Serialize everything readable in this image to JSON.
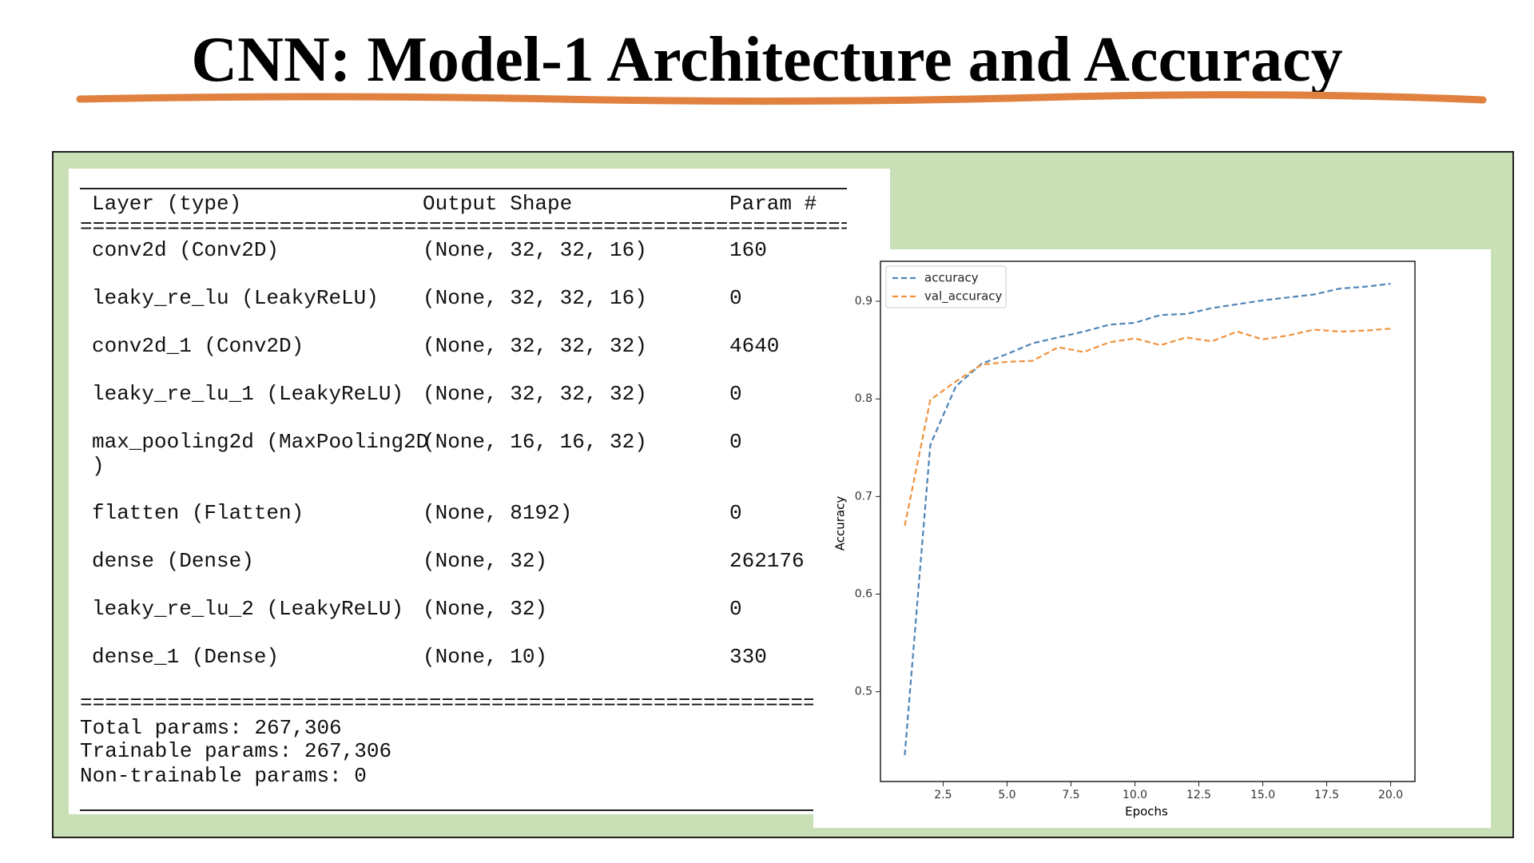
{
  "header": {
    "title": "CNN: Model-1 Architecture and Accuracy"
  },
  "table": {
    "columns": [
      "Layer (type)",
      "Output Shape",
      "Param #"
    ],
    "separator": "==============================================================",
    "rows": [
      [
        "conv2d (Conv2D)",
        "(None, 32, 32, 16)",
        "160"
      ],
      [
        "leaky_re_lu (LeakyReLU)",
        "(None, 32, 32, 16)",
        "0"
      ],
      [
        "conv2d_1 (Conv2D)",
        "(None, 32, 32, 32)",
        "4640"
      ],
      [
        "leaky_re_lu_1 (LeakyReLU)",
        "(None, 32, 32, 32)",
        "0"
      ],
      [
        "max_pooling2d (MaxPooling2D\n)",
        "(None, 16, 16, 32)",
        "0"
      ],
      [
        "flatten (Flatten)",
        "(None, 8192)",
        "0"
      ],
      [
        "dense (Dense)",
        "(None, 32)",
        "262176"
      ],
      [
        "leaky_re_lu_2 (LeakyReLU)",
        "(None, 32)",
        "0"
      ],
      [
        "dense_1 (Dense)",
        "(None, 10)",
        "330"
      ]
    ],
    "footer": [
      "Total params: 267,306",
      "Trainable params: 267,306",
      "Non-trainable params: 0"
    ]
  },
  "chart_data": {
    "type": "line",
    "xlabel": "Epochs",
    "ylabel": "Accuracy",
    "x": [
      1,
      2,
      3,
      4,
      5,
      6,
      7,
      8,
      9,
      10,
      11,
      12,
      13,
      14,
      15,
      16,
      17,
      18,
      19,
      20
    ],
    "series": [
      {
        "name": "accuracy",
        "color": "#4c84b8",
        "values": [
          0.435,
          0.753,
          0.813,
          0.836,
          0.846,
          0.857,
          0.863,
          0.869,
          0.876,
          0.878,
          0.886,
          0.887,
          0.893,
          0.897,
          0.901,
          0.904,
          0.907,
          0.913,
          0.915,
          0.918
        ]
      },
      {
        "name": "val_accuracy",
        "color": "#f0913a",
        "values": [
          0.67,
          0.799,
          0.818,
          0.835,
          0.838,
          0.839,
          0.853,
          0.848,
          0.858,
          0.862,
          0.855,
          0.863,
          0.859,
          0.869,
          0.861,
          0.865,
          0.871,
          0.869,
          0.87,
          0.872
        ]
      }
    ],
    "xlim": [
      0.05,
      20.95
    ],
    "ylim": [
      0.408,
      0.941
    ],
    "xticks": [
      2.5,
      {
        "value": 5,
        "label": "5.0"
      },
      7.5,
      {
        "value": 10,
        "label": "10.0"
      },
      12.5,
      {
        "value": 15,
        "label": "15.0"
      },
      17.5,
      {
        "value": 20,
        "label": "20.0"
      }
    ],
    "yticks": [
      0.5,
      0.6,
      0.7,
      0.8,
      0.9
    ],
    "legend": "upper left",
    "line_style": "dashed"
  }
}
